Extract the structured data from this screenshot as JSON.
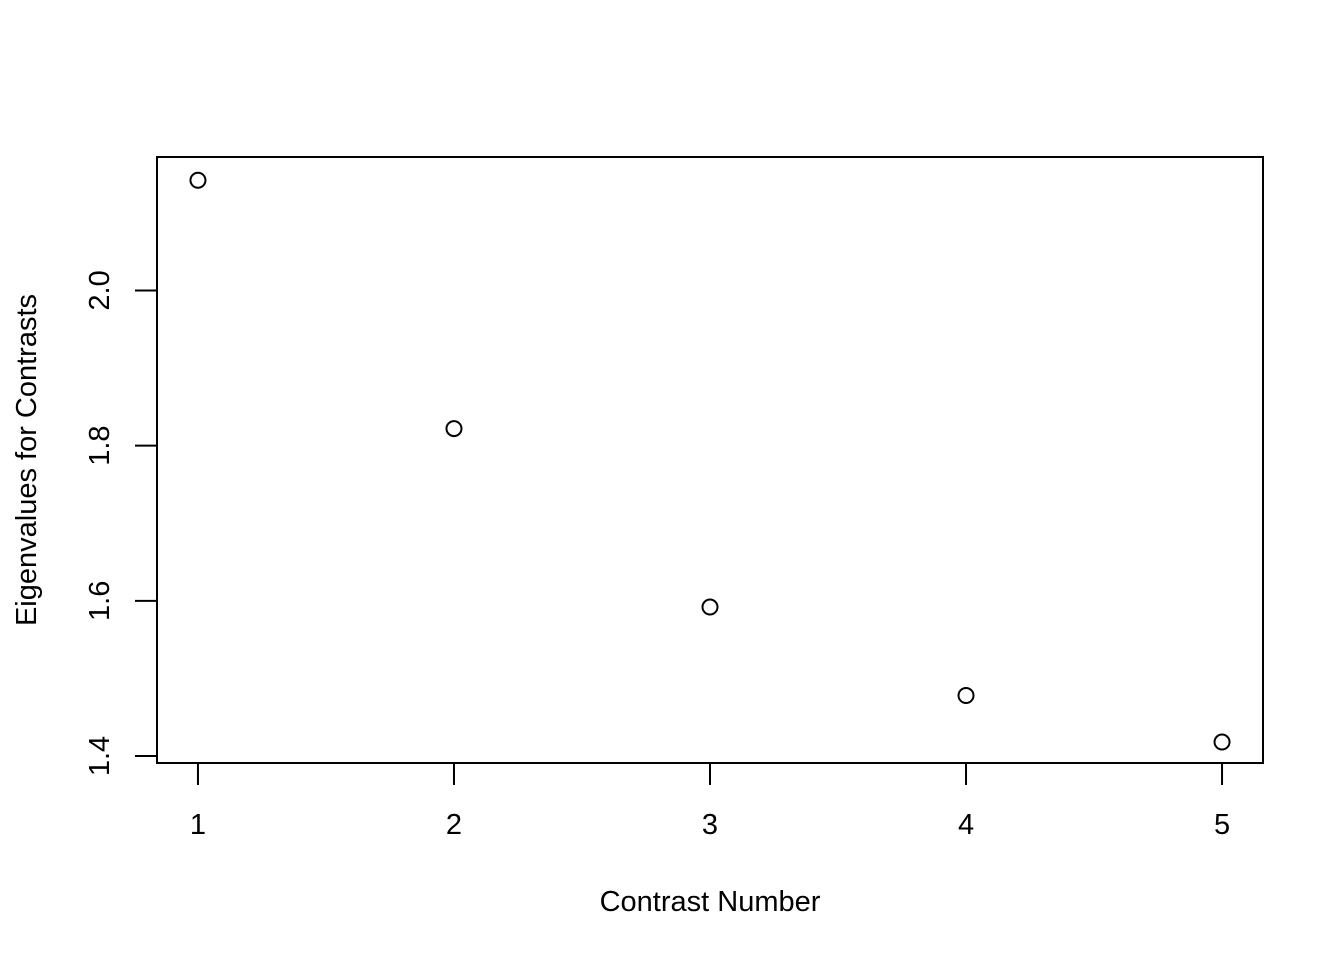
{
  "chart_data": {
    "type": "scatter",
    "title": "",
    "xlabel": "Contrast Number",
    "ylabel": "Eigenvalues for Contrasts",
    "x": [
      1,
      2,
      3,
      4,
      5
    ],
    "y": [
      2.142,
      1.822,
      1.592,
      1.478,
      1.418
    ],
    "xlim": [
      0.84,
      5.16
    ],
    "ylim": [
      1.391,
      2.172
    ],
    "x_ticks": [
      1,
      2,
      3,
      4,
      5
    ],
    "x_tick_labels": [
      "1",
      "2",
      "3",
      "4",
      "5"
    ],
    "y_ticks": [
      1.4,
      1.6,
      1.8,
      2.0
    ],
    "y_tick_labels": [
      "1.4",
      "1.6",
      "1.8",
      "2.0"
    ],
    "marker": "open-circle",
    "grid": false,
    "legend": "none",
    "colors": {
      "points": "#000000",
      "axes": "#000000",
      "background": "#ffffff"
    }
  }
}
